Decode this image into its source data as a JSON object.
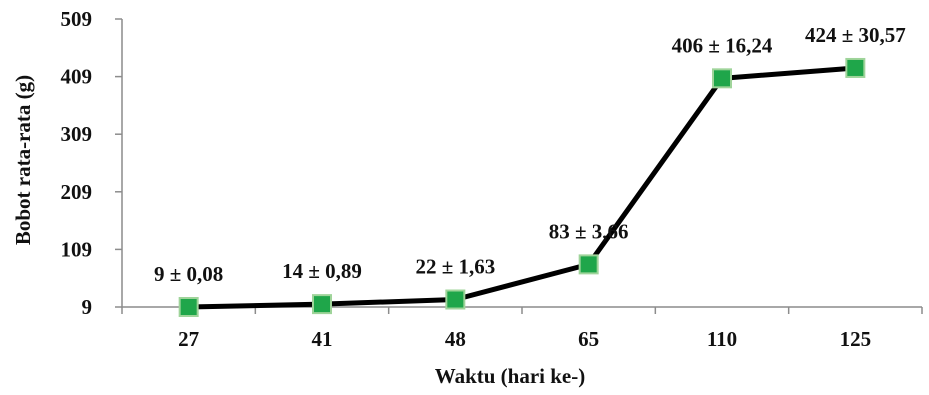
{
  "chart_data": {
    "type": "line",
    "xlabel": "Waktu (hari ke-)",
    "ylabel": "Bobot rata-rata (g)",
    "categories": [
      "27",
      "41",
      "48",
      "65",
      "110",
      "125"
    ],
    "y_ticks": [
      "9",
      "109",
      "209",
      "309",
      "409",
      "509"
    ],
    "ylim": [
      9,
      509
    ],
    "series": [
      {
        "values": [
          9,
          14,
          22,
          83,
          406,
          424
        ]
      }
    ],
    "data_labels": [
      "9 ± 0,08",
      "14 ± 0,89",
      "22 ± 1,63",
      "83 ± 3,66",
      "406 ± 16,24",
      "424 ± 30,57"
    ],
    "grid": false,
    "legend": "none",
    "colors": {
      "line": "#000000",
      "marker": "#1fa64a",
      "marker_edge": "#9fd49a"
    }
  }
}
